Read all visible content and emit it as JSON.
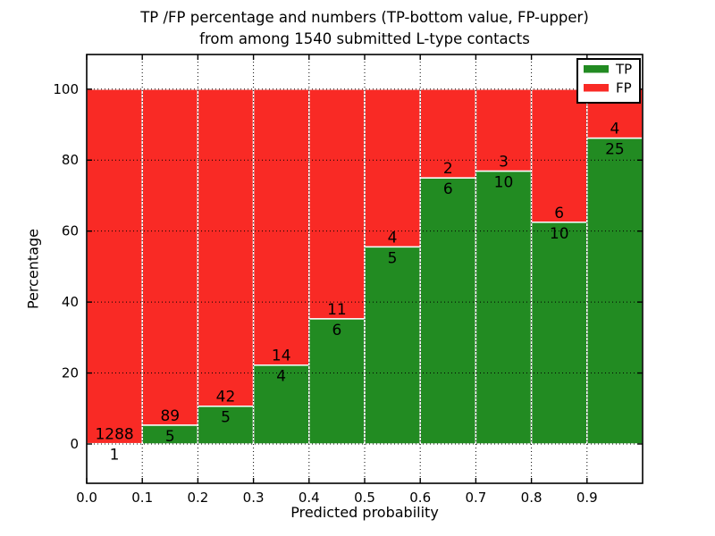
{
  "figure": {
    "title_line1": "TP /FP percentage and numbers (TP-bottom value, FP-upper)",
    "title_line2": "from among 1540 submitted L-type contacts",
    "xlabel": "Predicted probability",
    "ylabel": "Percentage"
  },
  "chart_data": {
    "type": "bar",
    "stacked": true,
    "title": "TP /FP percentage and numbers (TP-bottom value, FP-upper) from among 1540 submitted L-type contacts",
    "xlabel": "Predicted probability",
    "ylabel": "Percentage",
    "total_contacts": 1540,
    "grid": true,
    "xlim": [
      0.0,
      1.0
    ],
    "ylim": [
      -11,
      110
    ],
    "x_tick_values": [
      0.0,
      0.1,
      0.2,
      0.3,
      0.4,
      0.5,
      0.6,
      0.7,
      0.8,
      0.9
    ],
    "x_tick_labels": [
      "0.0",
      "0.1",
      "0.2",
      "0.3",
      "0.4",
      "0.5",
      "0.6",
      "0.7",
      "0.8",
      "0.9"
    ],
    "y_tick_values": [
      0,
      20,
      40,
      60,
      80,
      100
    ],
    "y_tick_labels": [
      "0",
      "20",
      "40",
      "60",
      "80",
      "100"
    ],
    "series": [
      {
        "name": "TP",
        "color": "#228b22"
      },
      {
        "name": "FP",
        "color": "#f92a25"
      }
    ],
    "bins": [
      {
        "range": [
          0.0,
          0.1
        ],
        "tp": 1,
        "fp": 1288,
        "tp_percent": 0.08
      },
      {
        "range": [
          0.1,
          0.2
        ],
        "tp": 5,
        "fp": 89,
        "tp_percent": 5.32
      },
      {
        "range": [
          0.2,
          0.3
        ],
        "tp": 5,
        "fp": 42,
        "tp_percent": 10.64
      },
      {
        "range": [
          0.3,
          0.4
        ],
        "tp": 4,
        "fp": 14,
        "tp_percent": 22.22
      },
      {
        "range": [
          0.4,
          0.5
        ],
        "tp": 6,
        "fp": 11,
        "tp_percent": 35.29
      },
      {
        "range": [
          0.5,
          0.6
        ],
        "tp": 5,
        "fp": 4,
        "tp_percent": 55.56
      },
      {
        "range": [
          0.6,
          0.7
        ],
        "tp": 6,
        "fp": 2,
        "tp_percent": 75.0
      },
      {
        "range": [
          0.7,
          0.8
        ],
        "tp": 10,
        "fp": 3,
        "tp_percent": 76.92
      },
      {
        "range": [
          0.8,
          0.9
        ],
        "tp": 10,
        "fp": 6,
        "tp_percent": 62.5
      },
      {
        "range": [
          0.9,
          1.0
        ],
        "tp": 25,
        "fp": 4,
        "tp_percent": 86.21
      }
    ],
    "legend": {
      "position": "upper right",
      "entries": [
        {
          "label": "TP",
          "color": "#228b22"
        },
        {
          "label": "FP",
          "color": "#f92a25"
        }
      ]
    }
  },
  "colors": {
    "tp_green": "#228b22",
    "fp_red": "#f92a25",
    "grid": "#000000",
    "bar_edge": "#ffffff",
    "background": "#ffffff"
  }
}
